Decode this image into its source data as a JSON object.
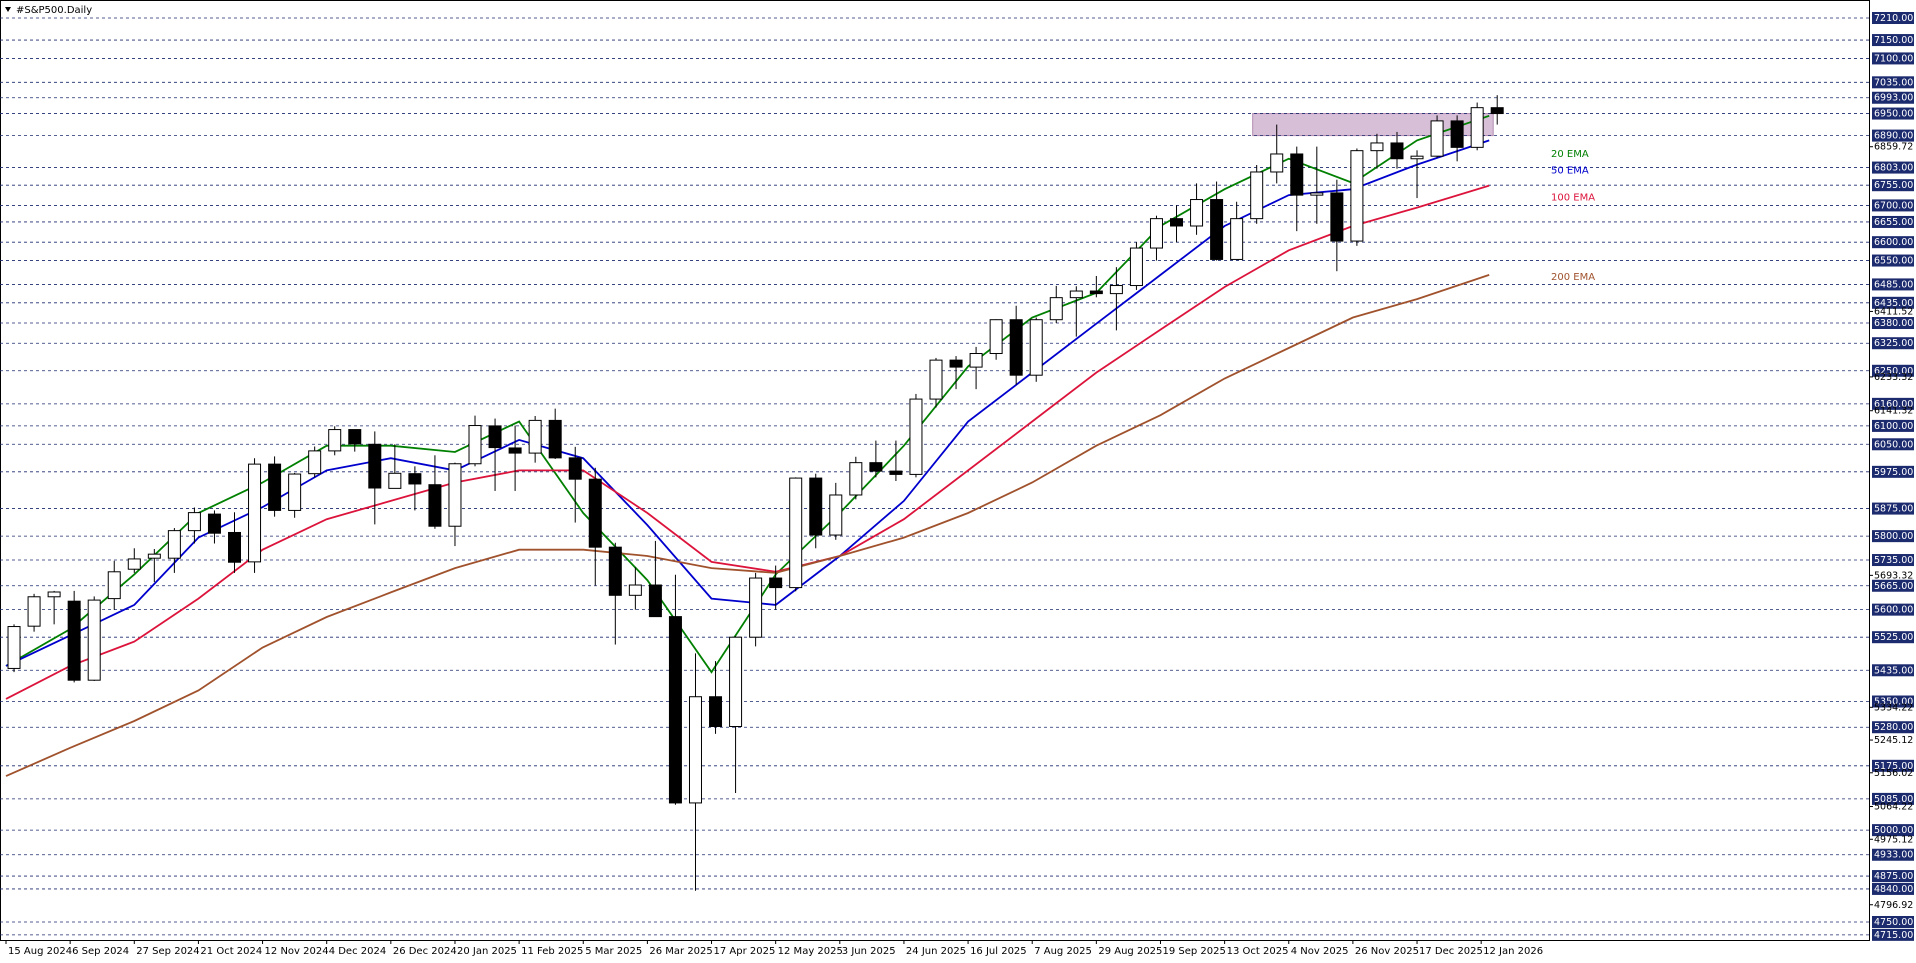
{
  "chart_data": {
    "type": "candlestick",
    "title": "#S&P500.Daily",
    "up_color": "#ffffff",
    "down_color": "#000000",
    "xlim": [
      -1.5,
      465
    ],
    "ylim": [
      4701,
      7259
    ],
    "x": [
      2,
      7,
      12,
      17,
      22,
      27,
      32,
      37,
      42,
      47,
      52,
      57,
      62,
      67,
      72,
      77,
      82,
      87,
      92,
      97,
      102,
      107,
      112,
      117,
      122,
      127,
      132,
      137,
      142,
      147,
      152,
      157,
      162,
      167,
      172,
      177,
      182,
      187,
      192,
      197,
      202,
      207,
      212,
      217,
      222,
      227,
      232,
      237,
      242,
      247,
      252,
      257,
      262,
      267,
      272,
      277,
      282,
      287,
      292,
      297,
      302,
      307,
      312,
      317,
      322,
      327,
      332,
      337,
      342,
      347,
      352,
      357,
      362,
      367,
      372
    ],
    "open": [
      5440,
      5555,
      5635,
      5623,
      5408,
      5630,
      5710,
      5740,
      5740,
      5815,
      5860,
      5810,
      5730,
      5996,
      5870,
      5970,
      6032,
      6090,
      6050,
      5930,
      5970,
      5940,
      5827,
      5997,
      6100,
      6040,
      6026,
      6115,
      6013,
      5955,
      5770,
      5639,
      5667,
      5581,
      5074,
      5363,
      5282,
      5525,
      5686,
      5660,
      5958,
      5803,
      5912,
      6000,
      5977,
      5968,
      6173,
      6279,
      6260,
      6297,
      6389,
      6238,
      6389,
      6449,
      6467,
      6460,
      6482,
      6584,
      6664,
      6644,
      6716,
      6553,
      6664,
      6791,
      6840,
      6728,
      6734,
      6603,
      6849,
      6870,
      6827,
      6834,
      6930,
      6858,
      6966
    ],
    "high": [
      5560,
      5643,
      5651,
      5651,
      5636,
      5733,
      5767,
      5765,
      5822,
      5878,
      5870,
      5865,
      6012,
      6017,
      5972,
      6044,
      6099,
      6090,
      6085,
      6050,
      5990,
      6020,
      6000,
      6128,
      6120,
      6101,
      6127,
      6147,
      6043,
      5986,
      5782,
      5715,
      5787,
      5695,
      5481,
      5460,
      5528,
      5700,
      5720,
      5960,
      5970,
      5945,
      6016,
      6060,
      6060,
      6187,
      6285,
      6290,
      6315,
      6390,
      6427,
      6395,
      6481,
      6480,
      6508,
      6532,
      6600,
      6672,
      6700,
      6760,
      6765,
      6710,
      6810,
      6920,
      6860,
      6860,
      6770,
      6855,
      6895,
      6900,
      6850,
      6945,
      6945,
      6980,
      7000
    ],
    "low": [
      5430,
      5540,
      5560,
      5402,
      5406,
      5600,
      5700,
      5675,
      5700,
      5780,
      5780,
      5700,
      5700,
      5853,
      5850,
      5960,
      6020,
      6030,
      5832,
      5930,
      5870,
      5820,
      5773,
      5990,
      5923,
      5923,
      6000,
      6010,
      5837,
      5666,
      5505,
      5600,
      5580,
      5069,
      4835,
      5262,
      5101,
      5500,
      5600,
      5650,
      5767,
      5790,
      5900,
      5960,
      5950,
      5960,
      6150,
      6200,
      6200,
      6280,
      6212,
      6220,
      6380,
      6343,
      6450,
      6360,
      6470,
      6550,
      6600,
      6620,
      6550,
      6560,
      6650,
      6760,
      6630,
      6650,
      6521,
      6590,
      6800,
      6800,
      6720,
      6830,
      6820,
      6850,
      6920
    ],
    "close": [
      5554,
      5635,
      5648,
      5408,
      5626,
      5703,
      5738,
      5751,
      5815,
      5864,
      5808,
      5729,
      5996,
      5870,
      5969,
      6032,
      6090,
      6051,
      5931,
      5971,
      5942,
      5827,
      5997,
      6101,
      6041,
      6026,
      6115,
      6013,
      5955,
      5770,
      5639,
      5667,
      5581,
      5074,
      5363,
      5282,
      5525,
      5686,
      5660,
      5958,
      5803,
      5912,
      6000,
      5977,
      5968,
      6173,
      6279,
      6260,
      6297,
      6389,
      6238,
      6389,
      6449,
      6467,
      6460,
      6482,
      6584,
      6664,
      6644,
      6716,
      6553,
      6664,
      6791,
      6840,
      6728,
      6734,
      6603,
      6849,
      6870,
      6827,
      6834,
      6930,
      6858,
      6966,
      6950
    ],
    "series": [
      {
        "name": "20 EMA",
        "color": "#008000",
        "x": [
          0,
          16,
          32,
          48,
          64,
          80,
          96,
          112,
          128,
          144,
          160,
          176,
          192,
          208,
          224,
          240,
          256,
          272,
          288,
          304,
          320,
          336,
          352,
          370
        ],
        "values": [
          5447,
          5547,
          5696,
          5863,
          5946,
          6046,
          6046,
          6029,
          6112,
          5863,
          5680,
          5430,
          5696,
          5863,
          6046,
          6262,
          6395,
          6462,
          6644,
          6744,
          6827,
          6761,
          6877,
          6944
        ]
      },
      {
        "name": "50 EMA",
        "color": "#0000cd",
        "x": [
          0,
          16,
          32,
          48,
          64,
          80,
          96,
          112,
          128,
          144,
          160,
          176,
          192,
          208,
          224,
          240,
          256,
          272,
          288,
          304,
          320,
          336,
          352,
          370
        ],
        "values": [
          5447,
          5530,
          5613,
          5796,
          5879,
          5979,
          6012,
          5979,
          6062,
          6012,
          5830,
          5630,
          5613,
          5746,
          5896,
          6112,
          6245,
          6378,
          6511,
          6644,
          6728,
          6744,
          6811,
          6877
        ]
      },
      {
        "name": "100 EMA",
        "color": "#dc143c",
        "x": [
          0,
          16,
          32,
          48,
          64,
          80,
          96,
          112,
          128,
          144,
          160,
          176,
          192,
          208,
          224,
          240,
          256,
          272,
          288,
          304,
          320,
          336,
          352,
          370
        ],
        "values": [
          5357,
          5447,
          5513,
          5630,
          5763,
          5846,
          5896,
          5946,
          5979,
          5979,
          5863,
          5730,
          5703,
          5746,
          5846,
          5979,
          6112,
          6245,
          6362,
          6478,
          6578,
          6644,
          6694,
          6754
        ]
      },
      {
        "name": "200 EMA",
        "color": "#a0522d",
        "x": [
          0,
          16,
          32,
          48,
          64,
          80,
          96,
          112,
          128,
          144,
          160,
          176,
          192,
          208,
          224,
          240,
          256,
          272,
          288,
          304,
          320,
          336,
          352,
          370
        ],
        "values": [
          5147,
          5224,
          5297,
          5380,
          5497,
          5580,
          5647,
          5713,
          5763,
          5763,
          5746,
          5713,
          5700,
          5746,
          5796,
          5863,
          5946,
          6046,
          6129,
          6229,
          6312,
          6395,
          6445,
          6511
        ]
      }
    ],
    "zone": {
      "xlim": [
        311,
        371
      ],
      "ylim": [
        6890,
        6950
      ],
      "color": "#d8bfd8"
    },
    "xticks": [
      {
        "value": 0,
        "label": "15 Aug 2024"
      },
      {
        "value": 16,
        "label": "6 Sep 2024"
      },
      {
        "value": 32,
        "label": "27 Sep 2024"
      },
      {
        "value": 48,
        "label": "21 Oct 2024"
      },
      {
        "value": 64,
        "label": "12 Nov 2024"
      },
      {
        "value": 80,
        "label": "4 Dec 2024"
      },
      {
        "value": 96,
        "label": "26 Dec 2024"
      },
      {
        "value": 112,
        "label": "20 Jan 2025"
      },
      {
        "value": 128,
        "label": "11 Feb 2025"
      },
      {
        "value": 144,
        "label": "5 Mar 2025"
      },
      {
        "value": 160,
        "label": "26 Mar 2025"
      },
      {
        "value": 176,
        "label": "17 Apr 2025"
      },
      {
        "value": 192,
        "label": "12 May 2025"
      },
      {
        "value": 208,
        "label": "3 Jun 2025"
      },
      {
        "value": 224,
        "label": "24 Jun 2025"
      },
      {
        "value": 240,
        "label": "16 Jul 2025"
      },
      {
        "value": 256,
        "label": "7 Aug 2025"
      },
      {
        "value": 272,
        "label": "29 Aug 2025"
      },
      {
        "value": 288,
        "label": "19 Sep 2025"
      },
      {
        "value": 304,
        "label": "13 Oct 2025"
      },
      {
        "value": 320,
        "label": "4 Nov 2025"
      },
      {
        "value": 336,
        "label": "26 Nov 2025"
      },
      {
        "value": 352,
        "label": "17 Dec 2025"
      },
      {
        "value": 368,
        "label": "12 Jan 2026"
      }
    ],
    "yticks": [
      6859.72,
      6411.52,
      6233.32,
      6141.32,
      5693.32,
      5334.22,
      5245.12,
      5156.02,
      5064.22,
      4975.12,
      4796.92
    ],
    "levels": [
      {
        "value": 7210,
        "label": "7210.00"
      },
      {
        "value": 7150,
        "label": "7150.00"
      },
      {
        "value": 7100,
        "label": "7100.00"
      },
      {
        "value": 7035,
        "label": "7035.00"
      },
      {
        "value": 6993,
        "label": "6993.00"
      },
      {
        "value": 6950,
        "label": "6950.00"
      },
      {
        "value": 6890,
        "label": "6890.00"
      },
      {
        "value": 6803,
        "label": "6803.00"
      },
      {
        "value": 6755,
        "label": "6755.00"
      },
      {
        "value": 6700,
        "label": "6700.00"
      },
      {
        "value": 6655,
        "label": "6655.00"
      },
      {
        "value": 6600,
        "label": "6600.00"
      },
      {
        "value": 6550,
        "label": "6550.00"
      },
      {
        "value": 6485,
        "label": "6485.00"
      },
      {
        "value": 6435,
        "label": "6435.00"
      },
      {
        "value": 6380,
        "label": "6380.00"
      },
      {
        "value": 6325,
        "label": "6325.00"
      },
      {
        "value": 6250,
        "label": "6250.00"
      },
      {
        "value": 6160,
        "label": "6160.00"
      },
      {
        "value": 6100,
        "label": "6100.00"
      },
      {
        "value": 6050,
        "label": "6050.00"
      },
      {
        "value": 5975,
        "label": "5975.00"
      },
      {
        "value": 5875,
        "label": "5875.00"
      },
      {
        "value": 5800,
        "label": "5800.00"
      },
      {
        "value": 5735,
        "label": "5735.00"
      },
      {
        "value": 5665,
        "label": "5665.00"
      },
      {
        "value": 5600,
        "label": "5600.00"
      },
      {
        "value": 5525,
        "label": "5525.00"
      },
      {
        "value": 5435,
        "label": "5435.00"
      },
      {
        "value": 5350,
        "label": "5350.00"
      },
      {
        "value": 5280,
        "label": "5280.00"
      },
      {
        "value": 5175,
        "label": "5175.00"
      },
      {
        "value": 5085,
        "label": "5085.00"
      },
      {
        "value": 5000,
        "label": "5000.00"
      },
      {
        "value": 4933,
        "label": "4933.00"
      },
      {
        "value": 4875,
        "label": "4875.00"
      },
      {
        "value": 4840,
        "label": "4840.00"
      },
      {
        "value": 4750,
        "label": "4750.00"
      },
      {
        "value": 4715,
        "label": "4715.00"
      }
    ],
    "level_color": "#1c2a6e"
  }
}
